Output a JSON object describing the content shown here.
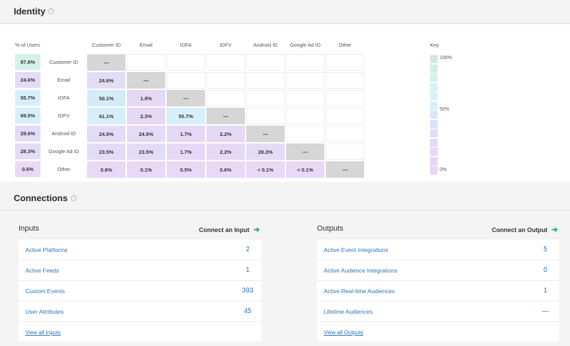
{
  "identity": {
    "title": "Identity",
    "pct_header": "% of Users",
    "columns": [
      "Customer ID",
      "Email",
      "IDFA",
      "IDFV",
      "Android ID",
      "Google Ad ID",
      "Other"
    ],
    "rows": [
      {
        "label": "Customer ID",
        "pct": "87.8%",
        "pct_color": "#d4f1ea",
        "cells": [
          "—",
          "",
          "",
          "",
          "",
          "",
          ""
        ]
      },
      {
        "label": "Email",
        "pct": "24.6%",
        "pct_color": "#e3dcf6",
        "cells": [
          "24.6%",
          "—",
          "",
          "",
          "",
          "",
          ""
        ]
      },
      {
        "label": "IDFA",
        "pct": "55.7%",
        "pct_color": "#d7effa",
        "cells": [
          "50.1%",
          "1.8%",
          "—",
          "",
          "",
          "",
          ""
        ]
      },
      {
        "label": "IDFV",
        "pct": "69.5%",
        "pct_color": "#d7effa",
        "cells": [
          "61.1%",
          "2.3%",
          "55.7%",
          "—",
          "",
          "",
          ""
        ]
      },
      {
        "label": "Android ID",
        "pct": "29.6%",
        "pct_color": "#e3dcf6",
        "cells": [
          "24.5%",
          "24.5%",
          "1.7%",
          "2.2%",
          "—",
          "",
          ""
        ]
      },
      {
        "label": "Google Ad ID",
        "pct": "28.3%",
        "pct_color": "#e3dcf6",
        "cells": [
          "23.5%",
          "23.5%",
          "1.7%",
          "2.2%",
          "28.3%",
          "—",
          ""
        ]
      },
      {
        "label": "Other",
        "pct": "0.6%",
        "pct_color": "#ead9f6",
        "cells": [
          "0.6%",
          "0.1%",
          "0.5%",
          "0.6%",
          "< 0.1%",
          "< 0.1%",
          "—"
        ]
      }
    ],
    "cell_colors": [
      [
        null,
        null,
        null,
        null,
        null,
        null,
        null
      ],
      [
        "#e3dcf6",
        null,
        null,
        null,
        null,
        null,
        null
      ],
      [
        "#d3ecf8",
        "#e6d9f6",
        null,
        null,
        null,
        null,
        null
      ],
      [
        "#d7effa",
        "#e6d9f6",
        "#d7effa",
        null,
        null,
        null,
        null
      ],
      [
        "#e3dcf6",
        "#e3dcf6",
        "#e6d9f6",
        "#e6d9f6",
        null,
        null,
        null
      ],
      [
        "#e3dcf6",
        "#e3dcf6",
        "#e6d9f6",
        "#e6d9f6",
        "#e3dcf6",
        null,
        null
      ],
      [
        "#ead9f6",
        "#ead9f6",
        "#ead9f6",
        "#ead9f6",
        "#ead9f6",
        "#ead9f6",
        null
      ]
    ],
    "key": {
      "title": "Key",
      "label_high": "100%",
      "label_mid": "50%",
      "label_low": "0%",
      "swatches": [
        "#cdebdd",
        "#d1eee6",
        "#d4f1ee",
        "#d6f2f4",
        "#d7f0f9",
        "#d7effa",
        "#dae6fa",
        "#dfe0f8",
        "#e2dcf7",
        "#e5daf6",
        "#e8d7f6",
        "#ead4f5",
        "#ecd2f5"
      ]
    }
  },
  "connections": {
    "title": "Connections",
    "inputs": {
      "title": "Inputs",
      "connect_label": "Connect an Input",
      "rows": [
        {
          "label": "Active Platforms",
          "value": "2"
        },
        {
          "label": "Active Feeds",
          "value": "1"
        },
        {
          "label": "Custom Events",
          "value": "393"
        },
        {
          "label": "User Attributes",
          "value": "45"
        }
      ],
      "view_all": "View all Inputs"
    },
    "outputs": {
      "title": "Outputs",
      "connect_label": "Connect an Output",
      "rows": [
        {
          "label": "Active Event Integrations",
          "value": "5"
        },
        {
          "label": "Active Audience Integrations",
          "value": "0"
        },
        {
          "label": "Active Real-time Audiences",
          "value": "1"
        },
        {
          "label": "Lifetime Audiences",
          "value": "—"
        }
      ],
      "view_all": "View all Outputs"
    },
    "arrow_glyph": "➔"
  }
}
